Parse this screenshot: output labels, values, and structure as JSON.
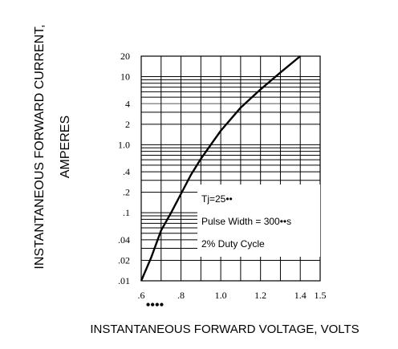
{
  "chart_data": {
    "type": "line",
    "title": "",
    "xlabel": "INSTANTANEOUS FORWARD VOLTAGE, VOLTS",
    "ylabel_line1": "INSTANTANEOUS FORWARD CURRENT,",
    "ylabel_line2": "AMPERES",
    "x_scale": "linear",
    "y_scale": "log",
    "xlim": [
      0.6,
      1.5
    ],
    "ylim": [
      0.01,
      20
    ],
    "x_ticks": [
      {
        "value": 0.6,
        "label": ".6"
      },
      {
        "value": 0.8,
        "label": ".8"
      },
      {
        "value": 1.0,
        "label": "1.0"
      },
      {
        "value": 1.2,
        "label": "1.2"
      },
      {
        "value": 1.4,
        "label": "1.4"
      },
      {
        "value": 1.5,
        "label": "1.5"
      }
    ],
    "y_ticks": [
      {
        "value": 20,
        "label": "20"
      },
      {
        "value": 10,
        "label": "10"
      },
      {
        "value": 4,
        "label": "4"
      },
      {
        "value": 2,
        "label": "2"
      },
      {
        "value": 1.0,
        "label": "1.0"
      },
      {
        "value": 0.4,
        "label": ".4"
      },
      {
        "value": 0.2,
        "label": ".2"
      },
      {
        "value": 0.1,
        "label": ".1"
      },
      {
        "value": 0.04,
        "label": ".04"
      },
      {
        "value": 0.02,
        "label": ".02"
      },
      {
        "value": 0.01,
        "label": ".01"
      }
    ],
    "grid": true,
    "annotations": [
      "Tj=25••",
      "Pulse Width = 300••s",
      "2% Duty Cycle"
    ],
    "x_axis_extra_mark": "••••",
    "series": [
      {
        "x": [
          0.6,
          0.65,
          0.7,
          0.75,
          0.8,
          0.85,
          0.9,
          0.95,
          1.0,
          1.1,
          1.2,
          1.3,
          1.4
        ],
        "y": [
          0.01,
          0.022,
          0.055,
          0.1,
          0.19,
          0.36,
          0.62,
          1.0,
          1.6,
          3.5,
          6.5,
          11.5,
          20
        ]
      }
    ]
  }
}
